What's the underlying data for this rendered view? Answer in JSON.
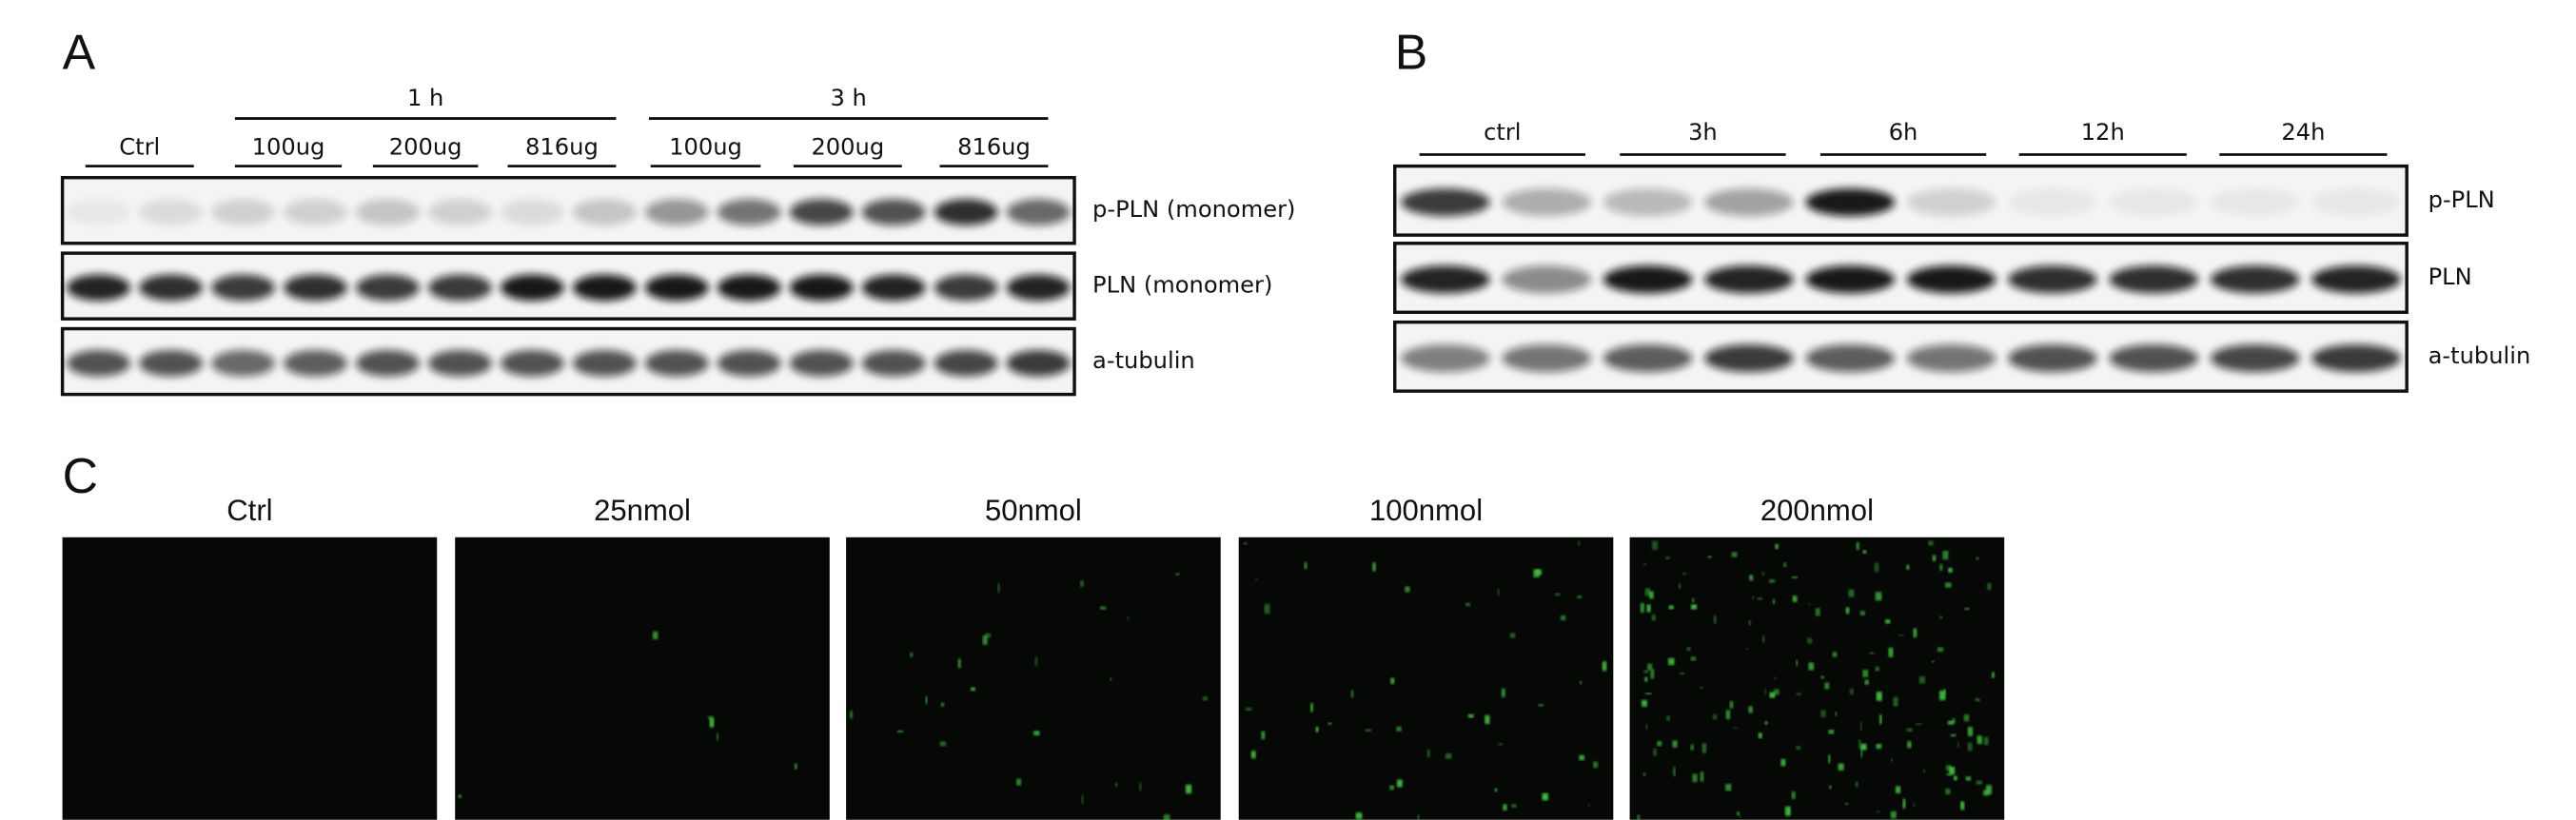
{
  "panel_a": {
    "label": "A",
    "groups": [
      "1 h",
      "3 h"
    ],
    "lanes": [
      "Ctrl",
      "100ug",
      "200ug",
      "816ug",
      "100ug",
      "200ug",
      "816ug"
    ],
    "bands": [
      "p-PLN (monomer)",
      "PLN (monomer)",
      "a-tubulin"
    ]
  },
  "panel_b": {
    "label": "B",
    "lanes": [
      "ctrl",
      "3h",
      "6h",
      "12h",
      "24h"
    ],
    "bands": [
      "p-PLN",
      "PLN",
      "a-tubulin"
    ]
  },
  "panel_c": {
    "label": "C",
    "images": [
      "Ctrl",
      "25nmol",
      "50nmol",
      "100nmol",
      "200nmol"
    ]
  }
}
